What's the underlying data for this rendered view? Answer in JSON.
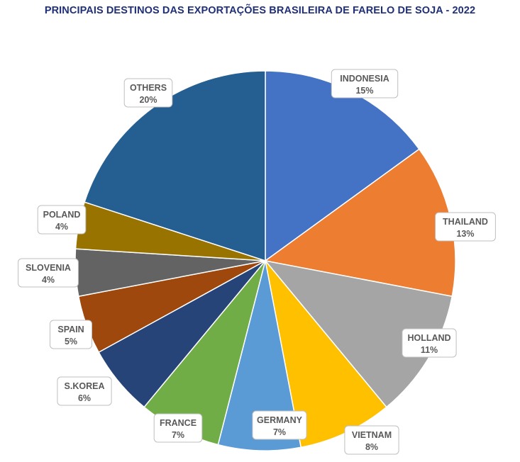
{
  "chart_data": {
    "type": "pie",
    "title": "PRINCIPAIS DESTINOS DAS EXPORTAÇÕES BRASILEIRA DE FARELO DE SOJA - 2022",
    "slices": [
      {
        "name": "INDONESIA",
        "pct_label": "15%",
        "value": 15,
        "color": "#4472c4"
      },
      {
        "name": "THAILAND",
        "pct_label": "13%",
        "value": 13,
        "color": "#ed7d31"
      },
      {
        "name": "HOLLAND",
        "pct_label": "11%",
        "value": 11,
        "color": "#a5a5a5"
      },
      {
        "name": "VIETNAM",
        "pct_label": "8%",
        "value": 8,
        "color": "#ffc000"
      },
      {
        "name": "GERMANY",
        "pct_label": "7%",
        "value": 7,
        "color": "#5b9bd5"
      },
      {
        "name": "FRANCE",
        "pct_label": "7%",
        "value": 7,
        "color": "#70ad47"
      },
      {
        "name": "S.KOREA",
        "pct_label": "6%",
        "value": 6,
        "color": "#264478"
      },
      {
        "name": "SPAIN",
        "pct_label": "5%",
        "value": 5,
        "color": "#9e480e"
      },
      {
        "name": "SLOVENIA",
        "pct_label": "4%",
        "value": 4,
        "color": "#636363"
      },
      {
        "name": "POLAND",
        "pct_label": "4%",
        "value": 4,
        "color": "#997300"
      },
      {
        "name": "OTHERS",
        "pct_label": "20%",
        "value": 20,
        "color": "#255e91"
      }
    ]
  }
}
